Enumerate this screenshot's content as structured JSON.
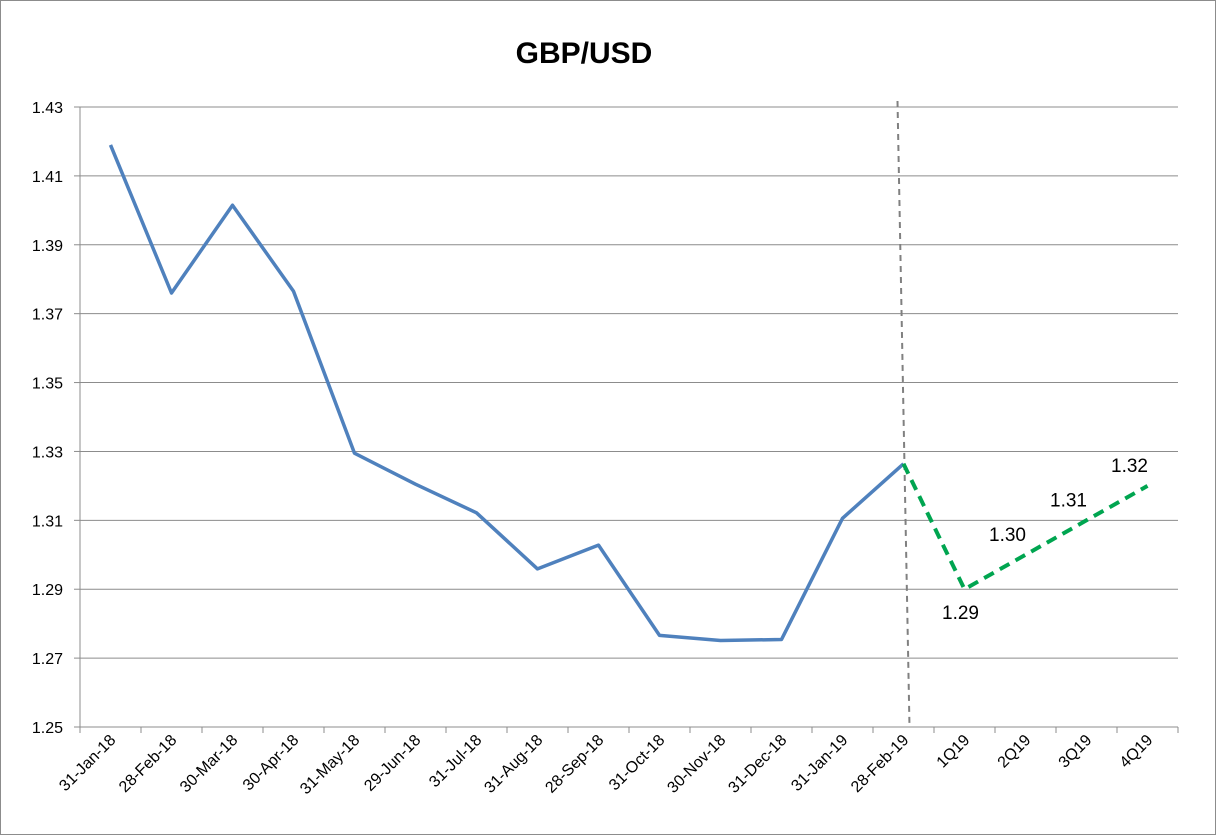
{
  "chart_data": {
    "type": "line",
    "title": "GBP/USD",
    "xlabel": "",
    "ylabel": "",
    "ylim": [
      1.25,
      1.43
    ],
    "yticks": [
      "1.25",
      "1.27",
      "1.29",
      "1.31",
      "1.33",
      "1.35",
      "1.37",
      "1.39",
      "1.41",
      "1.43"
    ],
    "categories": [
      "31-Jan-18",
      "28-Feb-18",
      "30-Mar-18",
      "30-Apr-18",
      "31-May-18",
      "29-Jun-18",
      "31-Jul-18",
      "31-Aug-18",
      "28-Sep-18",
      "31-Oct-18",
      "30-Nov-18",
      "31-Dec-18",
      "31-Jan-19",
      "28-Feb-19",
      "1Q19",
      "2Q19",
      "3Q19",
      "4Q19"
    ],
    "grid": true,
    "legend": "none",
    "divider_after": "28-Feb-19",
    "series": [
      {
        "style": "solid",
        "color": "#4f81bd",
        "x": [
          "31-Jan-18",
          "28-Feb-18",
          "30-Mar-18",
          "30-Apr-18",
          "31-May-18",
          "29-Jun-18",
          "31-Jul-18",
          "31-Aug-18",
          "28-Sep-18",
          "31-Oct-18",
          "30-Nov-18",
          "31-Dec-18",
          "31-Jan-19",
          "28-Feb-19"
        ],
        "values": [
          1.419,
          1.376,
          1.4015,
          1.3765,
          1.3295,
          1.3205,
          1.3122,
          1.2959,
          1.3028,
          1.2766,
          1.2751,
          1.2754,
          1.3106,
          1.3264
        ]
      },
      {
        "style": "dashed",
        "color": "#00a550",
        "x": [
          "28-Feb-19",
          "1Q19",
          "2Q19",
          "3Q19",
          "4Q19"
        ],
        "values": [
          1.3264,
          1.29,
          1.3,
          1.31,
          1.32
        ],
        "data_labels": [
          "",
          "1.29",
          "1.30",
          "1.31",
          "1.32"
        ]
      }
    ]
  }
}
